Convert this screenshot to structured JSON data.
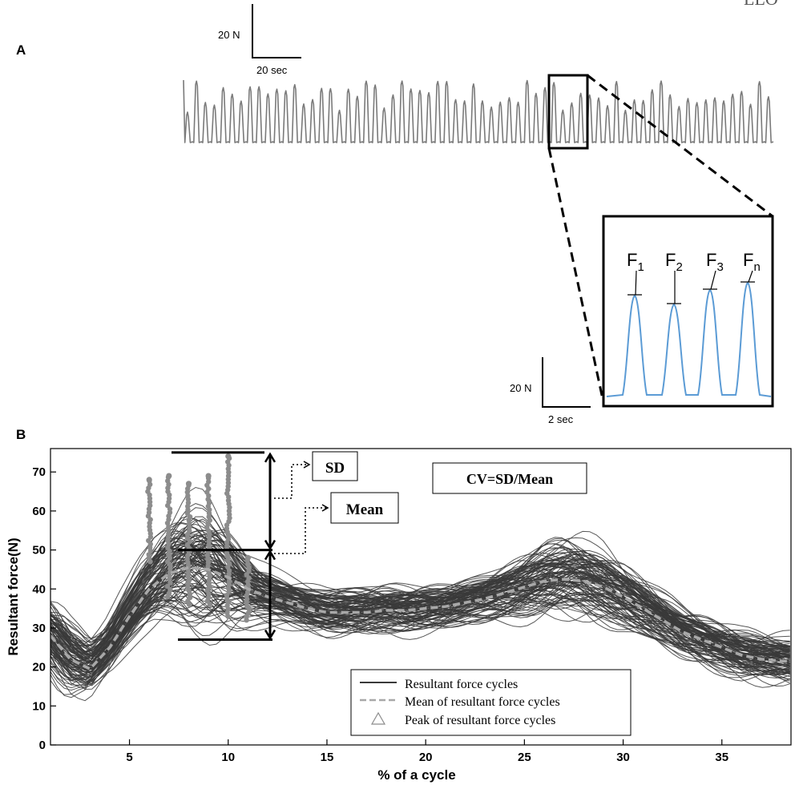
{
  "figure": {
    "corner_mark": "LLO",
    "panel_a_label": "A",
    "panel_b_label": "B"
  },
  "chart_data": [
    {
      "type": "line",
      "panel": "A",
      "description_of_trace": "raw resultant force recording, repeated tapping cycles",
      "n_cycles": 66,
      "scale_bar": {
        "force_label": "20 N",
        "time_label": "20 sec"
      },
      "zoom_inset": {
        "peak_labels": [
          "F",
          "F",
          "F",
          "F"
        ],
        "peak_subscripts": [
          "1",
          "2",
          "3",
          "n"
        ],
        "scale_bar": {
          "force_label": "20 N",
          "time_label": "2 sec"
        }
      }
    },
    {
      "type": "line",
      "panel": "B",
      "xlabel": "% of a cycle",
      "ylabel": "Resultant force(N)",
      "xlim": [
        1,
        38.5
      ],
      "ylim": [
        0,
        76
      ],
      "xticks": [
        5,
        10,
        15,
        20,
        25,
        30,
        35
      ],
      "yticks": [
        0,
        10,
        20,
        30,
        40,
        50,
        60,
        70
      ],
      "mean_series": {
        "name": "Mean of resultant force cycles",
        "x": [
          1,
          2,
          3,
          4,
          5,
          6,
          7,
          8,
          9,
          10,
          11,
          12,
          13,
          14,
          15,
          16,
          17,
          18,
          19,
          20,
          21,
          22,
          23,
          24,
          25,
          26,
          27,
          28,
          29,
          30,
          31,
          32,
          33,
          34,
          35,
          36,
          37,
          38,
          38.5
        ],
        "values": [
          28,
          22,
          19.5,
          25,
          33,
          40,
          44,
          45.5,
          45,
          43,
          40,
          38,
          36.5,
          35,
          34,
          34,
          34,
          34.5,
          34.5,
          35,
          35.5,
          36.5,
          37.5,
          39,
          40.5,
          42,
          42.5,
          42,
          40.5,
          38,
          35,
          32,
          29,
          27,
          25,
          23,
          22,
          21.5,
          21.5
        ]
      },
      "cycles_band": {
        "name": "Resultant force cycles",
        "n_curves": 110
      },
      "peak_columns_x": [
        6,
        7,
        8,
        9,
        10,
        11
      ],
      "annotations": {
        "sd_label": "SD",
        "mean_label": "Mean",
        "cv_label": "CV=SD/Mean",
        "sd_upper_value": 75,
        "mean_value": 50,
        "sd_lower_value": 27
      },
      "legend": {
        "position": "bottom-right",
        "entries": [
          "Resultant force cycles",
          "Mean of resultant force cycles",
          "Peak of resultant force cycles"
        ]
      }
    }
  ],
  "colors": {
    "trace_a": "#7a7a7a",
    "inset_trace": "#5b9bd5",
    "cycles": "#3a3a3a",
    "mean": "#a8a8a8",
    "peaks": "#8c8c8c"
  }
}
